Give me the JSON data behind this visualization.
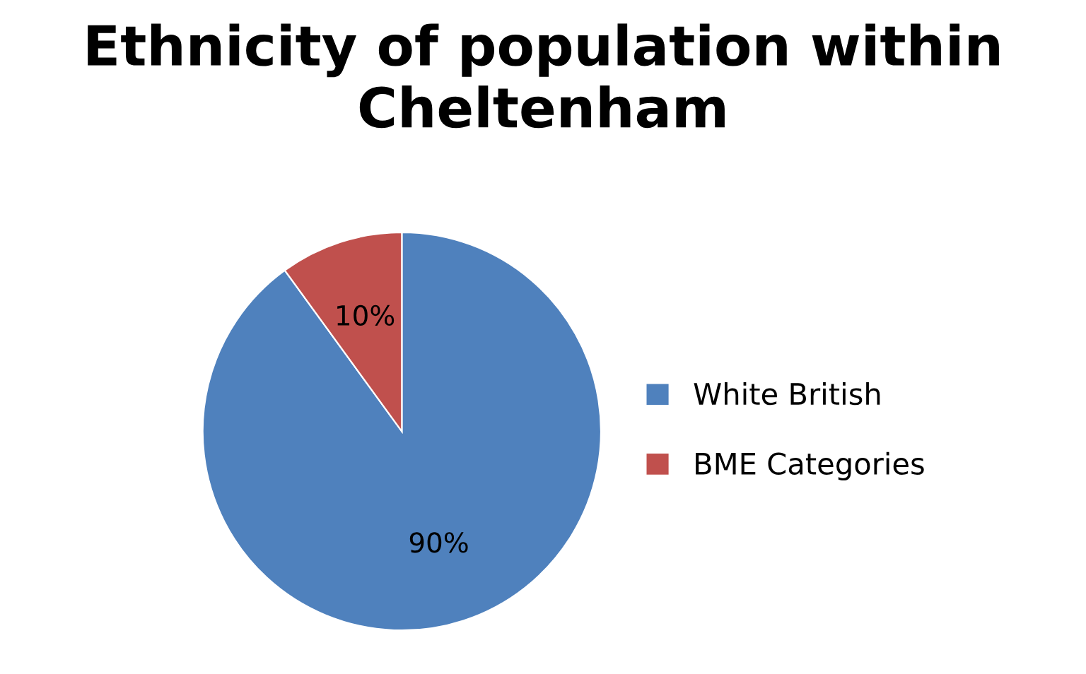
{
  "chart_data": {
    "type": "pie",
    "title": "Ethnicity of population within Cheltenham",
    "categories": [
      "White British",
      "BME Categories"
    ],
    "values": [
      90,
      10
    ],
    "colors": [
      "#4f81bd",
      "#c0504d"
    ],
    "value_labels": [
      "90%",
      "10%"
    ],
    "legend": "right"
  }
}
